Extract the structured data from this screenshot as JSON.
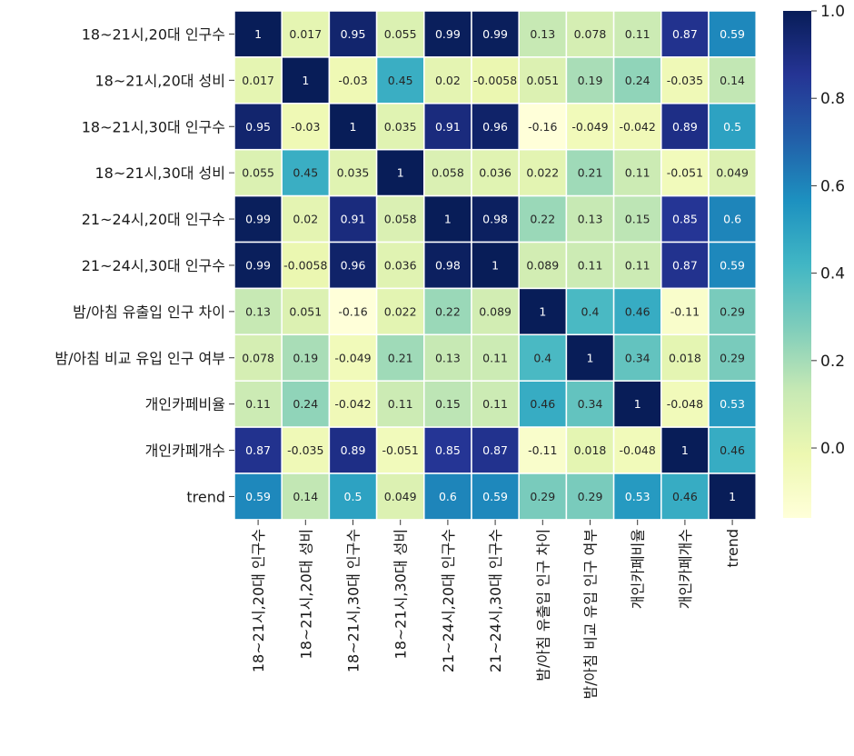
{
  "chart_data": {
    "type": "heatmap",
    "title": "",
    "xlabel": "",
    "ylabel": "",
    "rows": [
      "18~21시,20대 인구수",
      "18~21시,20대 성비",
      "18~21시,30대 인구수",
      "18~21시,30대 성비",
      "21~24시,20대 인구수",
      "21~24시,30대 인구수",
      "밤/아침 유출입 인구 차이",
      "밤/아침 비교 유입 인구 여부",
      "개인카페비율",
      "개인카페개수",
      "trend"
    ],
    "columns": [
      "18~21시,20대 인구수",
      "18~21시,20대 성비",
      "18~21시,30대 인구수",
      "18~21시,30대 성비",
      "21~24시,20대 인구수",
      "21~24시,30대 인구수",
      "밤/아침 유출입 인구 차이",
      "밤/아침 비교 유입 인구 여부",
      "개인카페비율",
      "개인카페개수",
      "trend"
    ],
    "values": [
      [
        1,
        0.017,
        0.95,
        0.055,
        0.99,
        0.99,
        0.13,
        0.078,
        0.11,
        0.87,
        0.59
      ],
      [
        0.017,
        1,
        -0.03,
        0.45,
        0.02,
        -0.0058,
        0.051,
        0.19,
        0.24,
        -0.035,
        0.14
      ],
      [
        0.95,
        -0.03,
        1,
        0.035,
        0.91,
        0.96,
        -0.16,
        -0.049,
        -0.042,
        0.89,
        0.5
      ],
      [
        0.055,
        0.45,
        0.035,
        1,
        0.058,
        0.036,
        0.022,
        0.21,
        0.11,
        -0.051,
        0.049
      ],
      [
        0.99,
        0.02,
        0.91,
        0.058,
        1,
        0.98,
        0.22,
        0.13,
        0.15,
        0.85,
        0.6
      ],
      [
        0.99,
        -0.0058,
        0.96,
        0.036,
        0.98,
        1,
        0.089,
        0.11,
        0.11,
        0.87,
        0.59
      ],
      [
        0.13,
        0.051,
        -0.16,
        0.022,
        0.22,
        0.089,
        1,
        0.4,
        0.46,
        -0.11,
        0.29
      ],
      [
        0.078,
        0.19,
        -0.049,
        0.21,
        0.13,
        0.11,
        0.4,
        1,
        0.34,
        0.018,
        0.29
      ],
      [
        0.11,
        0.24,
        -0.042,
        0.11,
        0.15,
        0.11,
        0.46,
        0.34,
        1,
        -0.048,
        0.53
      ],
      [
        0.87,
        -0.035,
        0.89,
        -0.051,
        0.85,
        0.87,
        -0.11,
        0.018,
        -0.048,
        1,
        0.46
      ],
      [
        0.59,
        0.14,
        0.5,
        0.049,
        0.6,
        0.59,
        0.29,
        0.29,
        0.53,
        0.46,
        1
      ]
    ],
    "colormap": "YlGnBu",
    "colorbar": {
      "vmin": -0.16,
      "vmax": 1.0,
      "ticks": [
        0.0,
        0.2,
        0.4,
        0.6,
        0.8,
        1.0
      ],
      "tick_labels": [
        "0.0",
        "0.2",
        "0.4",
        "0.6",
        "0.8",
        "1.0"
      ]
    },
    "annotated": true,
    "grid_lines_color": "#ffffff"
  }
}
